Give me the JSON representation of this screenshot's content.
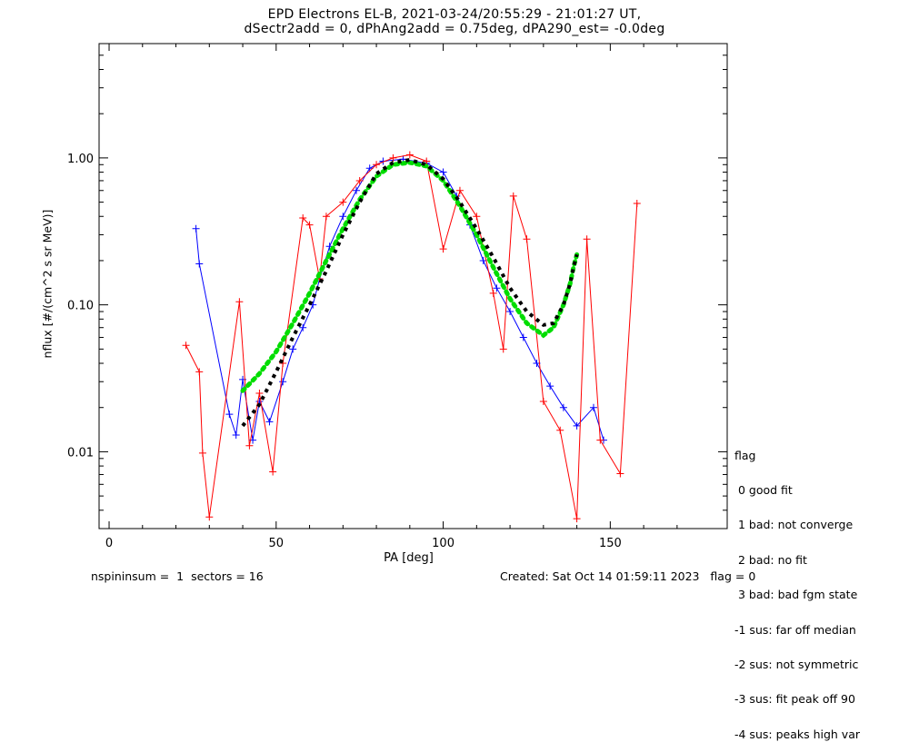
{
  "chart_data": {
    "type": "scatter",
    "title": "EPD Electrons EL-B, 2021-03-24/20:55:29 - 21:01:27 UT,",
    "subtitle": "dSectr2add = 0, dPhAng2add = 0.75deg, dPA290_est=  -0.0deg",
    "xlabel": "PA [deg]",
    "ylabel": "nflux [#/(cm^2 s sr MeV)]",
    "xlim": [
      -3,
      185
    ],
    "ylim": [
      0.003,
      6.0
    ],
    "yscale": "log",
    "x_ticks": [
      0,
      50,
      100,
      150
    ],
    "x_tick_labels": [
      "0",
      "50",
      "100",
      "150"
    ],
    "y_ticks": [
      0.01,
      0.1,
      1.0
    ],
    "y_tick_labels": [
      "0.01",
      "0.10",
      "1.00"
    ],
    "grid": false,
    "series": [
      {
        "color": "#0000ff",
        "marker": "plus",
        "x": [
          26,
          27,
          36,
          38,
          40,
          43,
          45,
          48,
          52,
          55,
          58,
          61,
          63,
          66,
          70,
          74,
          78,
          82,
          88,
          95,
          100,
          104,
          108,
          112,
          116,
          120,
          124,
          128,
          132,
          136,
          140,
          145,
          148
        ],
        "y": [
          0.33,
          0.19,
          0.018,
          0.013,
          0.031,
          0.012,
          0.022,
          0.016,
          0.03,
          0.05,
          0.07,
          0.1,
          0.15,
          0.25,
          0.4,
          0.6,
          0.85,
          0.95,
          0.98,
          0.92,
          0.8,
          0.55,
          0.35,
          0.2,
          0.13,
          0.09,
          0.06,
          0.04,
          0.028,
          0.02,
          0.015,
          0.02,
          0.012
        ]
      },
      {
        "color": "#ff0000",
        "marker": "plus",
        "x": [
          23,
          27,
          28,
          30,
          39,
          42,
          45,
          49,
          52,
          58,
          60,
          63,
          65,
          70,
          75,
          80,
          85,
          90,
          95,
          100,
          105,
          110,
          115,
          118,
          121,
          125,
          130,
          135,
          140,
          143,
          147,
          153,
          158
        ],
        "y": [
          0.053,
          0.035,
          0.0098,
          0.0036,
          0.105,
          0.011,
          0.025,
          0.0073,
          0.04,
          0.39,
          0.35,
          0.15,
          0.4,
          0.5,
          0.7,
          0.9,
          1.0,
          1.05,
          0.95,
          0.24,
          0.6,
          0.4,
          0.12,
          0.05,
          0.55,
          0.28,
          0.022,
          0.014,
          0.0035,
          0.28,
          0.012,
          0.0071,
          0.49
        ]
      },
      {
        "name": "fit",
        "color": "#00dd00",
        "style": "dotted",
        "x": [
          40,
          45,
          50,
          55,
          60,
          65,
          70,
          75,
          80,
          85,
          90,
          95,
          100,
          105,
          110,
          115,
          120,
          125,
          130,
          133,
          136,
          138,
          139,
          140
        ],
        "y": [
          0.026,
          0.034,
          0.048,
          0.075,
          0.12,
          0.2,
          0.33,
          0.52,
          0.75,
          0.9,
          0.93,
          0.88,
          0.7,
          0.47,
          0.3,
          0.18,
          0.11,
          0.075,
          0.062,
          0.07,
          0.1,
          0.14,
          0.18,
          0.22
        ]
      },
      {
        "name": "fit",
        "color": "#000000",
        "style": "dashed",
        "x": [
          40,
          45,
          50,
          55,
          60,
          65,
          70,
          75,
          80,
          85,
          90,
          95,
          100,
          105,
          110,
          115,
          120,
          125,
          130,
          133,
          136,
          138,
          139,
          140
        ],
        "y": [
          0.015,
          0.021,
          0.035,
          0.06,
          0.1,
          0.17,
          0.3,
          0.5,
          0.78,
          0.93,
          0.97,
          0.9,
          0.72,
          0.5,
          0.33,
          0.21,
          0.13,
          0.09,
          0.073,
          0.075,
          0.1,
          0.14,
          0.18,
          0.22
        ]
      }
    ]
  },
  "legend": {
    "title": "flag",
    "entries": [
      " 0 good fit",
      " 1 bad: not converge",
      " 2 bad: no fit",
      " 3 bad: bad fgm state",
      "-1 sus: far off median",
      "-2 sus: not symmetric",
      "-3 sus: fit peak off 90",
      "-4 sus: peaks high var"
    ]
  },
  "footer": {
    "left": "nspininsum =  1  sectors = 16",
    "right": "Created: Sat Oct 14 01:59:11 2023   flag = 0"
  }
}
